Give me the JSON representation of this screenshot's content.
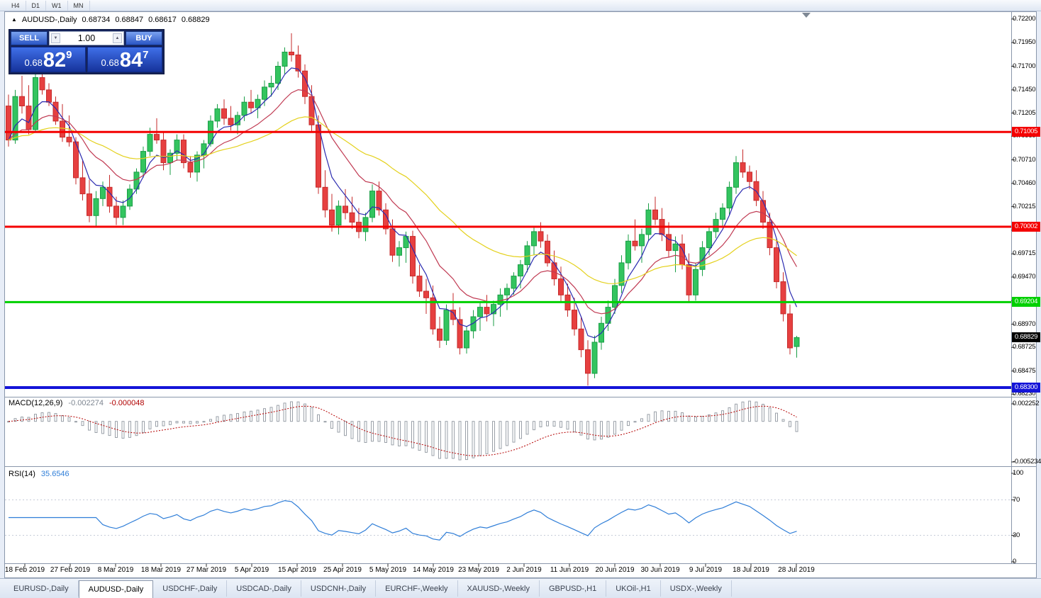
{
  "topbar": {
    "timeframes": [
      "H4",
      "D1",
      "W1",
      "MN"
    ]
  },
  "icons": {
    "symbol_arrow": "▲",
    "spinner_up": "▲",
    "spinner_down": "▼"
  },
  "chart": {
    "symbol": "AUDUSD-,Daily",
    "ohlc": {
      "open": "0.68734",
      "high": "0.68847",
      "low": "0.68617",
      "close": "0.68829"
    }
  },
  "trade_panel": {
    "sell_label": "SELL",
    "buy_label": "BUY",
    "volume": "1.00",
    "sell_price": {
      "prefix": "0.68",
      "big": "82",
      "pip": "9"
    },
    "buy_price": {
      "prefix": "0.68",
      "big": "84",
      "pip": "7"
    }
  },
  "price_axis_ticks": [
    "0.72200",
    "0.71950",
    "0.71700",
    "0.71450",
    "0.71205",
    "0.70960",
    "0.70710",
    "0.70460",
    "0.70215",
    "0.69965",
    "0.69715",
    "0.69470",
    "0.69220",
    "0.68970",
    "0.68725",
    "0.68475",
    "0.68230"
  ],
  "current_price_label": "0.68829",
  "macd_panel": {
    "title": "MACD(12,26,9)",
    "main_value": "-0.002274",
    "signal_value": "-0.000048",
    "axis_max": "0.002252",
    "axis_min": "-0.005234"
  },
  "rsi_panel": {
    "title": "RSI(14)",
    "value": "35.6546",
    "axis": [
      "100",
      "70",
      "30",
      "0"
    ]
  },
  "time_axis": [
    "18 Feb 2019",
    "27 Feb 2019",
    "8 Mar 2019",
    "18 Mar 2019",
    "27 Mar 2019",
    "5 Apr 2019",
    "15 Apr 2019",
    "25 Apr 2019",
    "5 May 2019",
    "14 May 2019",
    "23 May 2019",
    "2 Jun 2019",
    "11 Jun 2019",
    "20 Jun 2019",
    "30 Jun 2019",
    "9 Jul 2019",
    "18 Jul 2019",
    "28 Jul 2019"
  ],
  "tabs": [
    {
      "label": "EURUSD-,Daily",
      "active": false
    },
    {
      "label": "AUDUSD-,Daily",
      "active": true
    },
    {
      "label": "USDCHF-,Daily",
      "active": false
    },
    {
      "label": "USDCAD-,Daily",
      "active": false
    },
    {
      "label": "USDCNH-,Daily",
      "active": false
    },
    {
      "label": "EURCHF-,Weekly",
      "active": false
    },
    {
      "label": "XAUUSD-,Weekly",
      "active": false
    },
    {
      "label": "GBPUSD-,H1",
      "active": false
    },
    {
      "label": "UKOil-,H1",
      "active": false
    },
    {
      "label": "USDX-,Weekly",
      "active": false
    }
  ],
  "chart_data": {
    "type": "candlestick",
    "symbol": "AUDUSD",
    "timeframe": "Daily",
    "visible_price_range": [
      0.6823,
      0.722
    ],
    "last_price": 0.68829,
    "x_labels": [
      "18 Feb 2019",
      "27 Feb 2019",
      "8 Mar 2019",
      "18 Mar 2019",
      "27 Mar 2019",
      "5 Apr 2019",
      "15 Apr 2019",
      "25 Apr 2019",
      "5 May 2019",
      "14 May 2019",
      "23 May 2019",
      "2 Jun 2019",
      "11 Jun 2019",
      "20 Jun 2019",
      "30 Jun 2019",
      "9 Jul 2019",
      "18 Jul 2019",
      "28 Jul 2019"
    ],
    "horizontal_levels": [
      {
        "price": 0.71005,
        "label": "0.71005",
        "color": "#f40000",
        "width": 3
      },
      {
        "price": 0.70002,
        "label": "0.70002",
        "color": "#f40000",
        "width": 3
      },
      {
        "price": 0.69204,
        "label": "0.69204",
        "color": "#00d000",
        "width": 3
      },
      {
        "price": 0.683,
        "label": "0.68300",
        "color": "#1414d8",
        "width": 4
      }
    ],
    "moving_averages": [
      {
        "period": 5,
        "color": "#2b2bb0"
      },
      {
        "period": 13,
        "color": "#c03a52"
      },
      {
        "period": 34,
        "color": "#e4d11d"
      }
    ],
    "indicators": [
      {
        "name": "MACD",
        "params": [
          12,
          26,
          9
        ],
        "last_main": -0.002274,
        "last_signal": -4.8e-05,
        "axis_range": [
          -0.005234,
          0.002252
        ]
      },
      {
        "name": "RSI",
        "params": [
          14
        ],
        "last": 35.6546,
        "levels": [
          30,
          70
        ]
      }
    ],
    "candles_ohlc": [
      [
        0.7128,
        0.714,
        0.7085,
        0.7092
      ],
      [
        0.7092,
        0.7145,
        0.7088,
        0.7138
      ],
      [
        0.7138,
        0.716,
        0.712,
        0.7128
      ],
      [
        0.7128,
        0.715,
        0.7098,
        0.7103
      ],
      [
        0.7103,
        0.7165,
        0.71,
        0.7158
      ],
      [
        0.7158,
        0.7168,
        0.714,
        0.7145
      ],
      [
        0.7145,
        0.7152,
        0.7128,
        0.7132
      ],
      [
        0.7132,
        0.7138,
        0.7108,
        0.7112
      ],
      [
        0.7112,
        0.713,
        0.709,
        0.7095
      ],
      [
        0.7095,
        0.7118,
        0.7085,
        0.709
      ],
      [
        0.709,
        0.7095,
        0.7045,
        0.7052
      ],
      [
        0.7052,
        0.707,
        0.7028,
        0.7035
      ],
      [
        0.7035,
        0.705,
        0.7005,
        0.7012
      ],
      [
        0.7012,
        0.7038,
        0.7,
        0.703
      ],
      [
        0.703,
        0.7048,
        0.7022,
        0.7042
      ],
      [
        0.7042,
        0.7055,
        0.7015,
        0.7022
      ],
      [
        0.7022,
        0.7032,
        0.7002,
        0.701
      ],
      [
        0.701,
        0.7028,
        0.7002,
        0.7022
      ],
      [
        0.7022,
        0.7045,
        0.7018,
        0.704
      ],
      [
        0.704,
        0.7062,
        0.7035,
        0.7058
      ],
      [
        0.7058,
        0.7085,
        0.7052,
        0.708
      ],
      [
        0.708,
        0.7105,
        0.7075,
        0.7098
      ],
      [
        0.7098,
        0.7115,
        0.7088,
        0.7092
      ],
      [
        0.7092,
        0.71,
        0.706,
        0.7068
      ],
      [
        0.7068,
        0.7082,
        0.7055,
        0.7078
      ],
      [
        0.7078,
        0.7098,
        0.707,
        0.7092
      ],
      [
        0.7092,
        0.7098,
        0.7062,
        0.7068
      ],
      [
        0.7068,
        0.7075,
        0.7052,
        0.7058
      ],
      [
        0.7058,
        0.708,
        0.7048,
        0.7076
      ],
      [
        0.7076,
        0.7092,
        0.7062,
        0.7088
      ],
      [
        0.7088,
        0.7118,
        0.7085,
        0.7112
      ],
      [
        0.7112,
        0.713,
        0.7105,
        0.7125
      ],
      [
        0.7125,
        0.7135,
        0.7108,
        0.7115
      ],
      [
        0.7115,
        0.7128,
        0.7102,
        0.7108
      ],
      [
        0.7108,
        0.7122,
        0.7098,
        0.7118
      ],
      [
        0.7118,
        0.7138,
        0.7112,
        0.7132
      ],
      [
        0.7132,
        0.7145,
        0.712,
        0.7126
      ],
      [
        0.7126,
        0.714,
        0.7115,
        0.7135
      ],
      [
        0.7135,
        0.7155,
        0.7128,
        0.7148
      ],
      [
        0.7148,
        0.716,
        0.7138,
        0.7152
      ],
      [
        0.7152,
        0.7175,
        0.7145,
        0.717
      ],
      [
        0.717,
        0.719,
        0.7162,
        0.7185
      ],
      [
        0.7185,
        0.7205,
        0.7175,
        0.7182
      ],
      [
        0.7182,
        0.7192,
        0.7158,
        0.7165
      ],
      [
        0.7165,
        0.7172,
        0.713,
        0.7138
      ],
      [
        0.7138,
        0.715,
        0.71,
        0.7108
      ],
      [
        0.7108,
        0.7118,
        0.7035,
        0.7042
      ],
      [
        0.7042,
        0.706,
        0.701,
        0.7018
      ],
      [
        0.7018,
        0.7035,
        0.6995,
        0.7002
      ],
      [
        0.7002,
        0.7028,
        0.6992,
        0.7022
      ],
      [
        0.7022,
        0.704,
        0.7008,
        0.7015
      ],
      [
        0.7015,
        0.7032,
        0.6998,
        0.7005
      ],
      [
        0.7005,
        0.702,
        0.6988,
        0.6995
      ],
      [
        0.6995,
        0.7015,
        0.6985,
        0.701
      ],
      [
        0.701,
        0.7045,
        0.7005,
        0.7038
      ],
      [
        0.7038,
        0.7048,
        0.7012,
        0.7018
      ],
      [
        0.7018,
        0.7025,
        0.6992,
        0.6998
      ],
      [
        0.6998,
        0.7008,
        0.6963,
        0.697
      ],
      [
        0.697,
        0.6985,
        0.6958,
        0.6978
      ],
      [
        0.6978,
        0.6995,
        0.6962,
        0.699
      ],
      [
        0.699,
        0.6996,
        0.694,
        0.6948
      ],
      [
        0.6948,
        0.696,
        0.6926,
        0.6932
      ],
      [
        0.6932,
        0.6945,
        0.6908,
        0.6925
      ],
      [
        0.6925,
        0.6938,
        0.6886,
        0.6892
      ],
      [
        0.6892,
        0.6905,
        0.6872,
        0.688
      ],
      [
        0.688,
        0.6918,
        0.6875,
        0.6912
      ],
      [
        0.6912,
        0.693,
        0.6896,
        0.6902
      ],
      [
        0.6902,
        0.6915,
        0.6865,
        0.6872
      ],
      [
        0.6872,
        0.6895,
        0.6866,
        0.689
      ],
      [
        0.689,
        0.6912,
        0.6882,
        0.6905
      ],
      [
        0.6905,
        0.692,
        0.689,
        0.6915
      ],
      [
        0.6915,
        0.6928,
        0.69,
        0.6908
      ],
      [
        0.6908,
        0.6922,
        0.6895,
        0.6918
      ],
      [
        0.6918,
        0.6935,
        0.6905,
        0.6928
      ],
      [
        0.6928,
        0.694,
        0.6912,
        0.6935
      ],
      [
        0.6935,
        0.6952,
        0.6928,
        0.6948
      ],
      [
        0.6948,
        0.6965,
        0.6935,
        0.696
      ],
      [
        0.696,
        0.6985,
        0.6952,
        0.698
      ],
      [
        0.698,
        0.7,
        0.697,
        0.6995
      ],
      [
        0.6995,
        0.7005,
        0.6978,
        0.6985
      ],
      [
        0.6985,
        0.6992,
        0.6958,
        0.6962
      ],
      [
        0.6962,
        0.6975,
        0.6938,
        0.6945
      ],
      [
        0.6945,
        0.6958,
        0.692,
        0.6928
      ],
      [
        0.6928,
        0.694,
        0.6905,
        0.6912
      ],
      [
        0.6912,
        0.6925,
        0.6885,
        0.6892
      ],
      [
        0.6892,
        0.6905,
        0.6862,
        0.687
      ],
      [
        0.687,
        0.688,
        0.6832,
        0.6845
      ],
      [
        0.6845,
        0.6885,
        0.684,
        0.6878
      ],
      [
        0.6878,
        0.6905,
        0.687,
        0.6898
      ],
      [
        0.6898,
        0.6922,
        0.689,
        0.6915
      ],
      [
        0.6915,
        0.6945,
        0.6908,
        0.6938
      ],
      [
        0.6938,
        0.697,
        0.693,
        0.6962
      ],
      [
        0.6962,
        0.6992,
        0.6955,
        0.6985
      ],
      [
        0.6985,
        0.7008,
        0.6975,
        0.698
      ],
      [
        0.698,
        0.6998,
        0.6962,
        0.6992
      ],
      [
        0.6992,
        0.7025,
        0.6985,
        0.7018
      ],
      [
        0.7018,
        0.7032,
        0.7002,
        0.7008
      ],
      [
        0.7008,
        0.702,
        0.6985,
        0.6992
      ],
      [
        0.6992,
        0.7005,
        0.6968,
        0.6975
      ],
      [
        0.6975,
        0.699,
        0.6952,
        0.6982
      ],
      [
        0.6982,
        0.6992,
        0.6955,
        0.696
      ],
      [
        0.696,
        0.6972,
        0.692,
        0.6928
      ],
      [
        0.6928,
        0.6962,
        0.6922,
        0.6955
      ],
      [
        0.6955,
        0.6985,
        0.6948,
        0.6978
      ],
      [
        0.6978,
        0.7,
        0.697,
        0.6995
      ],
      [
        0.6995,
        0.7015,
        0.6988,
        0.7008
      ],
      [
        0.7008,
        0.7025,
        0.7,
        0.702
      ],
      [
        0.702,
        0.7048,
        0.7012,
        0.7042
      ],
      [
        0.7042,
        0.7075,
        0.7035,
        0.7068
      ],
      [
        0.7068,
        0.7082,
        0.7052,
        0.7058
      ],
      [
        0.7058,
        0.7065,
        0.704,
        0.7048
      ],
      [
        0.7048,
        0.706,
        0.7022,
        0.7028
      ],
      [
        0.7028,
        0.7038,
        0.6998,
        0.7005
      ],
      [
        0.7005,
        0.7015,
        0.697,
        0.6978
      ],
      [
        0.6978,
        0.6988,
        0.6935,
        0.6942
      ],
      [
        0.6942,
        0.6952,
        0.69,
        0.6908
      ],
      [
        0.6908,
        0.6918,
        0.6865,
        0.6872
      ],
      [
        0.68734,
        0.68847,
        0.68617,
        0.68829
      ]
    ]
  }
}
